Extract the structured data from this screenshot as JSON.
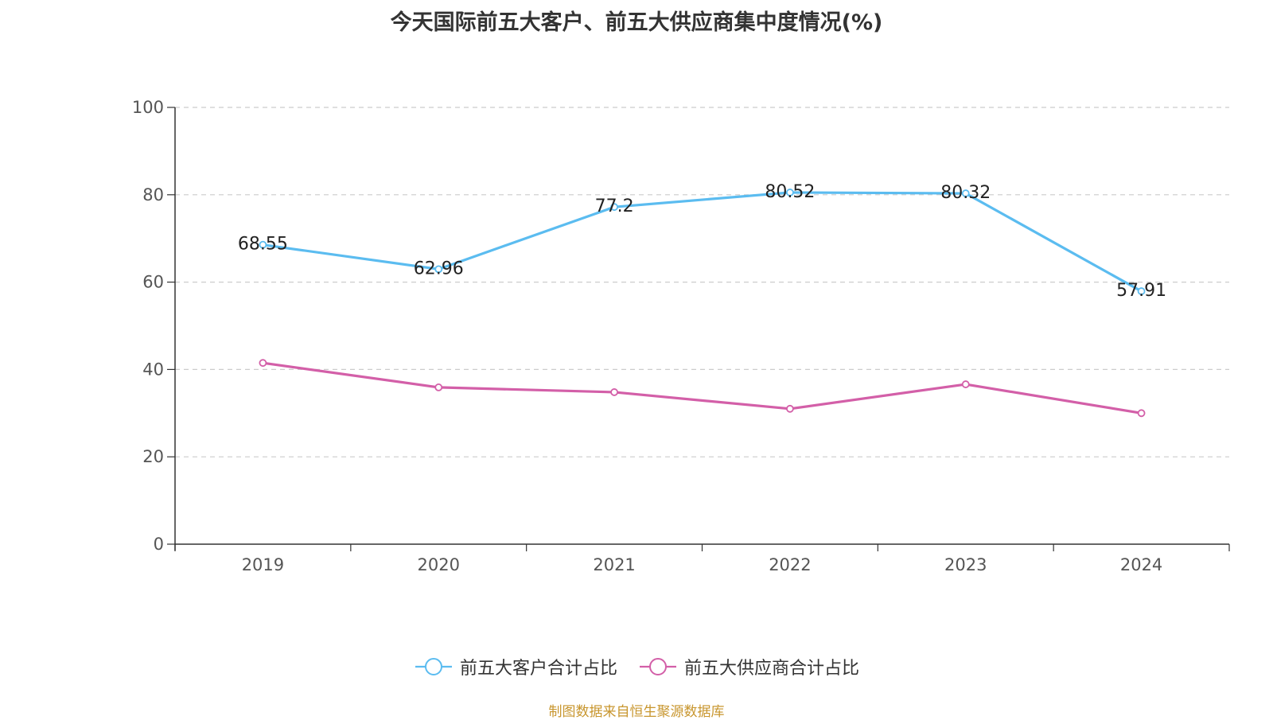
{
  "chart_data": {
    "type": "line",
    "title": "今天国际前五大客户、前五大供应商集中度情况(%)",
    "categories": [
      "2019",
      "2020",
      "2021",
      "2022",
      "2023",
      "2024"
    ],
    "ylim": [
      0,
      100
    ],
    "yticks": [
      0,
      20,
      40,
      60,
      80,
      100
    ],
    "grid": true,
    "legend_position": "bottom",
    "series": [
      {
        "name": "前五大客户合计占比",
        "color": "#5bbcf0",
        "values": [
          68.55,
          62.96,
          77.2,
          80.52,
          80.32,
          57.91
        ],
        "labels": [
          "68.55",
          "62.96",
          "77.2",
          "80.52",
          "80.32",
          "57.91"
        ],
        "show_labels": true
      },
      {
        "name": "前五大供应商合计占比",
        "color": "#d35fa8",
        "values": [
          41.5,
          35.9,
          34.8,
          31.0,
          36.6,
          30.0
        ],
        "show_labels": false
      }
    ]
  },
  "source_note": "制图数据来自恒生聚源数据库"
}
